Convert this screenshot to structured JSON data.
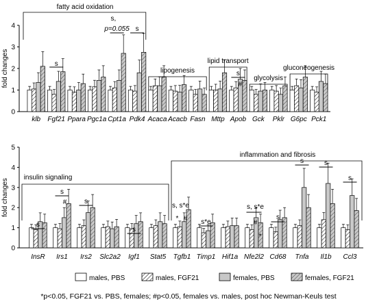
{
  "chart_data": [
    {
      "type": "bar",
      "ylabel": "fold changes",
      "ylim": [
        0,
        4
      ],
      "yticks": [
        0,
        1,
        2,
        3,
        4
      ],
      "series_names": [
        "males, PBS",
        "males, FGF21",
        "females, PBS",
        "females, FGF21"
      ],
      "categories": [
        "klb",
        "Fgf21",
        "Ppara",
        "Pgc1a",
        "Cpt1a",
        "Pdk4",
        "Acaca",
        "Acacb",
        "Fasn",
        "Mttp",
        "Apob",
        "Gck",
        "Pklr",
        "G6pc",
        "Pck1"
      ],
      "series": [
        {
          "name": "males, PBS",
          "values": [
            1.0,
            1.0,
            1.0,
            1.0,
            1.0,
            1.0,
            1.0,
            1.0,
            1.0,
            1.0,
            1.0,
            1.0,
            1.0,
            1.0,
            1.0
          ]
        },
        {
          "name": "males, FGF21",
          "values": [
            1.05,
            0.8,
            0.9,
            1.15,
            1.1,
            0.95,
            1.2,
            0.95,
            0.8,
            1.0,
            1.1,
            0.8,
            0.95,
            1.2,
            0.9
          ]
        },
        {
          "name": "females, PBS",
          "values": [
            1.35,
            1.4,
            1.0,
            1.45,
            1.45,
            1.8,
            1.2,
            0.9,
            1.05,
            1.05,
            1.5,
            0.95,
            0.8,
            1.1,
            1.4
          ]
        },
        {
          "name": "females, FGF21",
          "values": [
            2.1,
            1.85,
            1.3,
            1.6,
            2.7,
            2.75,
            1.6,
            1.25,
            0.8,
            1.8,
            1.45,
            1.0,
            1.2,
            1.6,
            1.3
          ]
        }
      ],
      "groups": [
        {
          "label": "fatty acid oxidation"
        },
        {
          "label": "lipogenesis"
        },
        {
          "label": "lipid transport"
        },
        {
          "label": "glycolysis"
        },
        {
          "label": "gluconeogenesis"
        }
      ],
      "annotations": [
        {
          "gene": "Fgf21",
          "text": "s"
        },
        {
          "gene": "Cpt1a",
          "text": "p=0.055"
        },
        {
          "gene": "Cpt1a-Pdk4",
          "text": "s,"
        },
        {
          "gene": "Pdk4",
          "text": "s"
        },
        {
          "gene": "Apob",
          "text": "s"
        },
        {
          "gene": "Apob",
          "text": "#"
        }
      ]
    },
    {
      "type": "bar",
      "ylabel": "fold changes",
      "ylim": [
        0,
        5
      ],
      "yticks": [
        0,
        1,
        2,
        3,
        4,
        5
      ],
      "series_names": [
        "males, PBS",
        "males, FGF21",
        "females, PBS",
        "females, FGF21"
      ],
      "categories": [
        "InsR",
        "Irs1",
        "Irs2",
        "Slc2a2",
        "Igf1",
        "Stat5",
        "Tgfb1",
        "Timp1",
        "Hif1a",
        "Nfe2l2",
        "Cd68",
        "Tnfa",
        "Il1b",
        "Ccl3"
      ],
      "series": [
        {
          "name": "males, PBS",
          "values": [
            1.0,
            1.0,
            1.0,
            1.0,
            1.0,
            1.0,
            1.0,
            1.0,
            1.0,
            1.0,
            1.0,
            1.0,
            1.0,
            1.0
          ]
        },
        {
          "name": "males, FGF21",
          "values": [
            0.9,
            0.95,
            1.1,
            1.05,
            0.95,
            1.1,
            1.05,
            0.75,
            1.05,
            0.9,
            0.8,
            1.1,
            1.4,
            0.9
          ]
        },
        {
          "name": "females, PBS",
          "values": [
            1.3,
            1.5,
            1.75,
            0.95,
            1.2,
            1.3,
            1.3,
            0.85,
            1.1,
            1.5,
            1.4,
            3.0,
            3.2,
            2.6
          ]
        },
        {
          "name": "females, FGF21",
          "values": [
            1.25,
            2.2,
            2.0,
            1.05,
            1.3,
            1.2,
            1.9,
            1.25,
            1.1,
            1.25,
            1.5,
            2.0,
            2.2,
            1.85
          ]
        }
      ],
      "groups": [
        {
          "label": "insulin signaling"
        },
        {
          "label": "inflammation and fibrosis"
        }
      ],
      "annotations": [
        {
          "gene": "InsR",
          "text": "s"
        },
        {
          "gene": "Irs1",
          "text": "s"
        },
        {
          "gene": "Irs1",
          "text": "#"
        },
        {
          "gene": "Irs2",
          "text": "s"
        },
        {
          "gene": "Igf1",
          "text": "s"
        },
        {
          "gene": "Tgfb1",
          "text": "s, s*e"
        },
        {
          "gene": "Tgfb1",
          "text": "*"
        },
        {
          "gene": "Tgfb1",
          "text": "#"
        },
        {
          "gene": "Timp1",
          "text": "s*e"
        },
        {
          "gene": "Nfe2l2",
          "text": "s, s*e"
        },
        {
          "gene": "Nfe2l2",
          "text": "#"
        },
        {
          "gene": "Nfe2l2",
          "text": "*"
        },
        {
          "gene": "Cd68",
          "text": "s"
        },
        {
          "gene": "Tnfa",
          "text": "s"
        },
        {
          "gene": "Il1b",
          "text": "s"
        },
        {
          "gene": "Ccl3",
          "text": "s"
        }
      ]
    }
  ],
  "legend": [
    "males, PBS",
    "males, FGF21",
    "females, PBS",
    "females, FGF21"
  ],
  "footnote": "*p<0.05, FGF21 vs. PBS, females; #p<0.05, females vs. males, post hoc Newman-Keuls test"
}
